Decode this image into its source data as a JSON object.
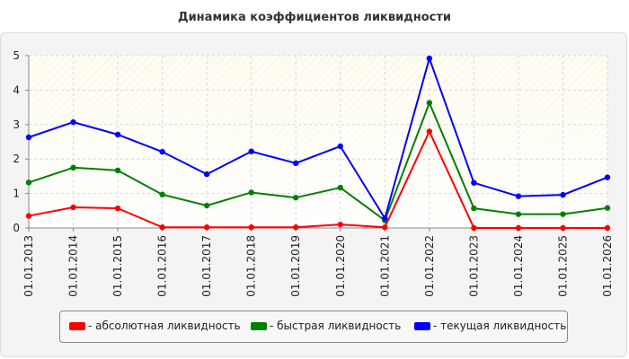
{
  "chart_data": {
    "type": "line",
    "title": "Динамика коэффициентов ликвидности",
    "xlabel": "",
    "ylabel": "",
    "ylim": [
      0,
      5
    ],
    "yticks": [
      "0",
      "1",
      "2",
      "3",
      "4",
      "5"
    ],
    "grid": true,
    "legend_position": "bottom",
    "categories": [
      "01.01.2013",
      "01.01.2014",
      "01.01.2015",
      "01.01.2016",
      "01.01.2017",
      "01.01.2018",
      "01.01.2019",
      "01.01.2020",
      "01.01.2021",
      "01.01.2022",
      "01.01.2023",
      "01.01.2024",
      "01.01.2025",
      "01.01.2026"
    ],
    "series": [
      {
        "name": "- абсолютная ликвидность",
        "color": "#ff0000",
        "values": [
          0.35,
          0.6,
          0.57,
          0.02,
          0.02,
          0.02,
          0.02,
          0.1,
          0.02,
          2.8,
          0.0,
          0.0,
          0.0,
          0.0
        ]
      },
      {
        "name": "- быстрая ликвидность",
        "color": "#008000",
        "values": [
          1.32,
          1.75,
          1.67,
          0.97,
          0.65,
          1.03,
          0.88,
          1.17,
          0.22,
          3.63,
          0.57,
          0.4,
          0.4,
          0.58
        ]
      },
      {
        "name": "- текущая ликвидность",
        "color": "#0000ff",
        "values": [
          2.63,
          3.07,
          2.71,
          2.21,
          1.56,
          2.22,
          1.88,
          2.37,
          0.28,
          4.92,
          1.31,
          0.92,
          0.96,
          1.47
        ]
      }
    ]
  }
}
